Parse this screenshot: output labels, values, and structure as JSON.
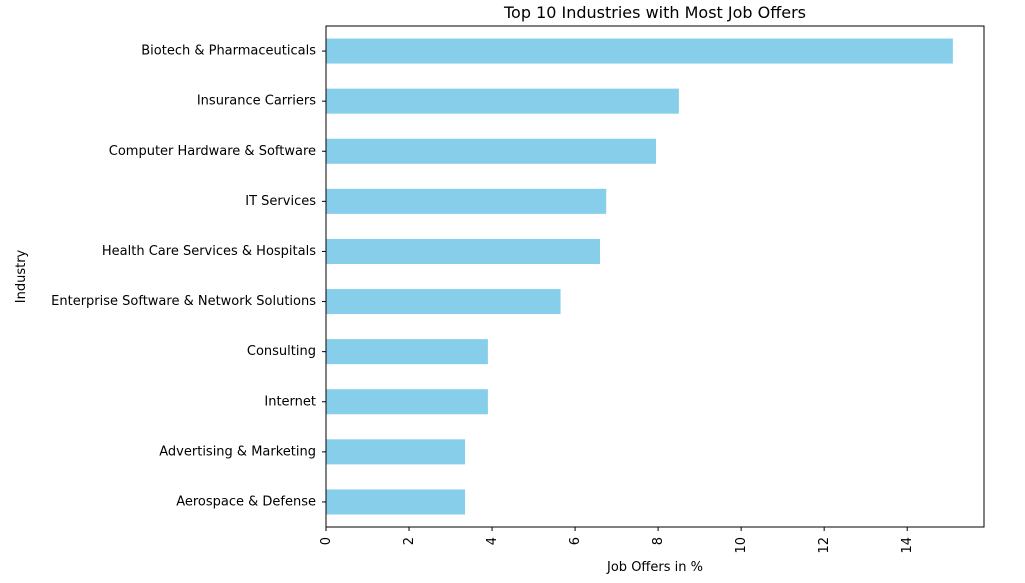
{
  "chart_data": {
    "type": "bar",
    "orientation": "horizontal",
    "title": "Top 10 Industries with Most Job Offers",
    "xlabel": "Job Offers in %",
    "ylabel": "Industry",
    "categories": [
      "Biotech & Pharmaceuticals",
      "Insurance Carriers",
      "Computer Hardware & Software",
      "IT Services",
      "Health Care Services & Hospitals",
      "Enterprise Software & Network Solutions",
      "Consulting",
      "Internet",
      "Advertising & Marketing",
      "Aerospace & Defense"
    ],
    "values": [
      15.1,
      8.5,
      7.95,
      6.75,
      6.6,
      5.65,
      3.9,
      3.9,
      3.35,
      3.35
    ],
    "xlim": [
      0,
      15.85
    ],
    "xticks": [
      "0",
      "2",
      "4",
      "6",
      "8",
      "10",
      "12",
      "14"
    ],
    "xtick_rotation": "vertical",
    "grid": false,
    "legend": "none",
    "bar_color": "#87CEEB"
  }
}
